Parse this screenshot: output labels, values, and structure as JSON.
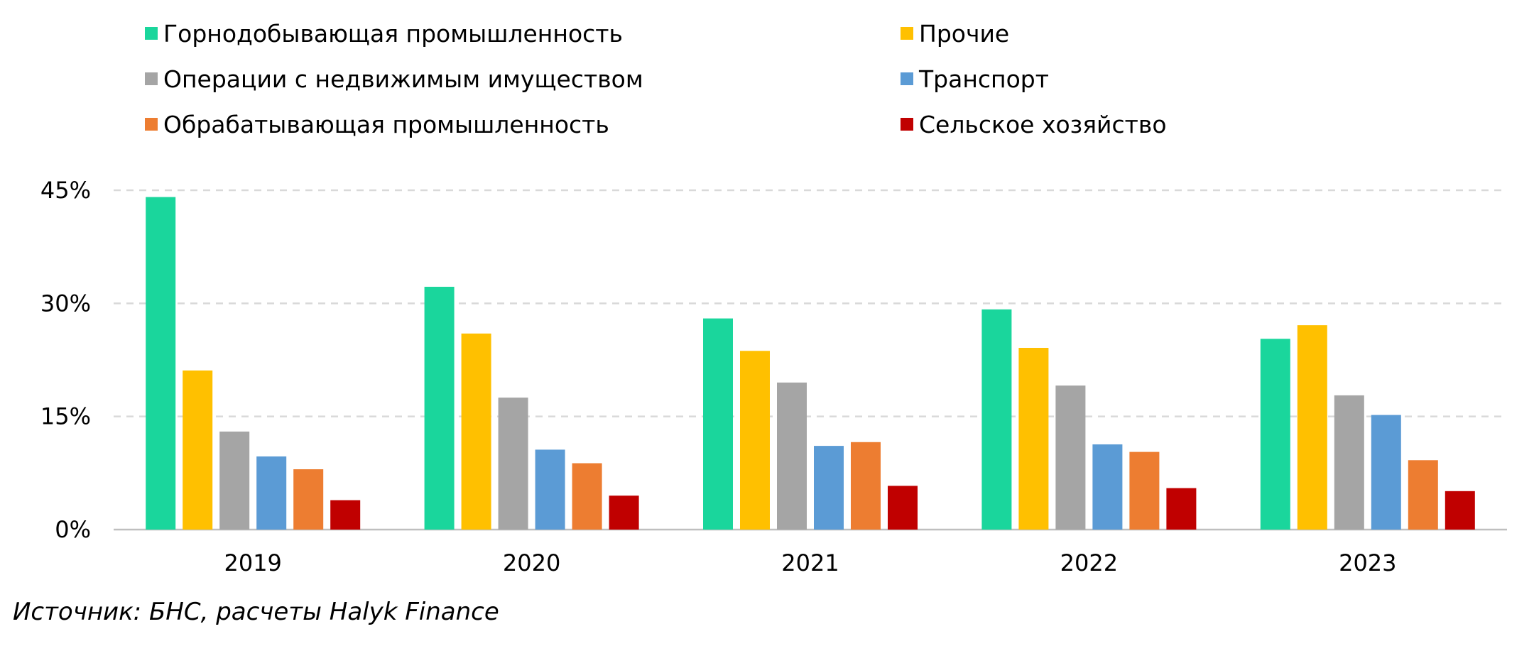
{
  "source_note": "Источник: БНС, расчеты Halyk Finance",
  "chart_data": {
    "type": "bar",
    "title": "",
    "xlabel": "",
    "ylabel": "",
    "categories": [
      "2019",
      "2020",
      "2021",
      "2022",
      "2023"
    ],
    "ylim": [
      0,
      45
    ],
    "yticks": [
      0,
      15,
      30,
      45
    ],
    "ytick_labels": [
      "0%",
      "15%",
      "30%",
      "45%"
    ],
    "grid": "horizontal dashed",
    "legend_position": "top",
    "series": [
      {
        "name": "Горнодобывающая промышленность",
        "color": "#1ad69c",
        "values": [
          44.1,
          32.2,
          28.0,
          29.2,
          25.3
        ]
      },
      {
        "name": "Прочие",
        "color": "#ffc000",
        "values": [
          21.1,
          26.0,
          23.7,
          24.1,
          27.1
        ]
      },
      {
        "name": "Операции с недвижимым имуществом",
        "color": "#a5a5a5",
        "values": [
          13.0,
          17.5,
          19.5,
          19.1,
          17.8
        ]
      },
      {
        "name": "Транспорт",
        "color": "#5b9bd5",
        "values": [
          9.7,
          10.6,
          11.1,
          11.3,
          15.2
        ]
      },
      {
        "name": "Обрабатывающая промышленность",
        "color": "#ed7d31",
        "values": [
          8.0,
          8.8,
          11.6,
          10.3,
          9.2
        ]
      },
      {
        "name": "Сельское хозяйство",
        "color": "#c00000",
        "values": [
          3.9,
          4.5,
          5.8,
          5.5,
          5.1
        ]
      }
    ]
  }
}
